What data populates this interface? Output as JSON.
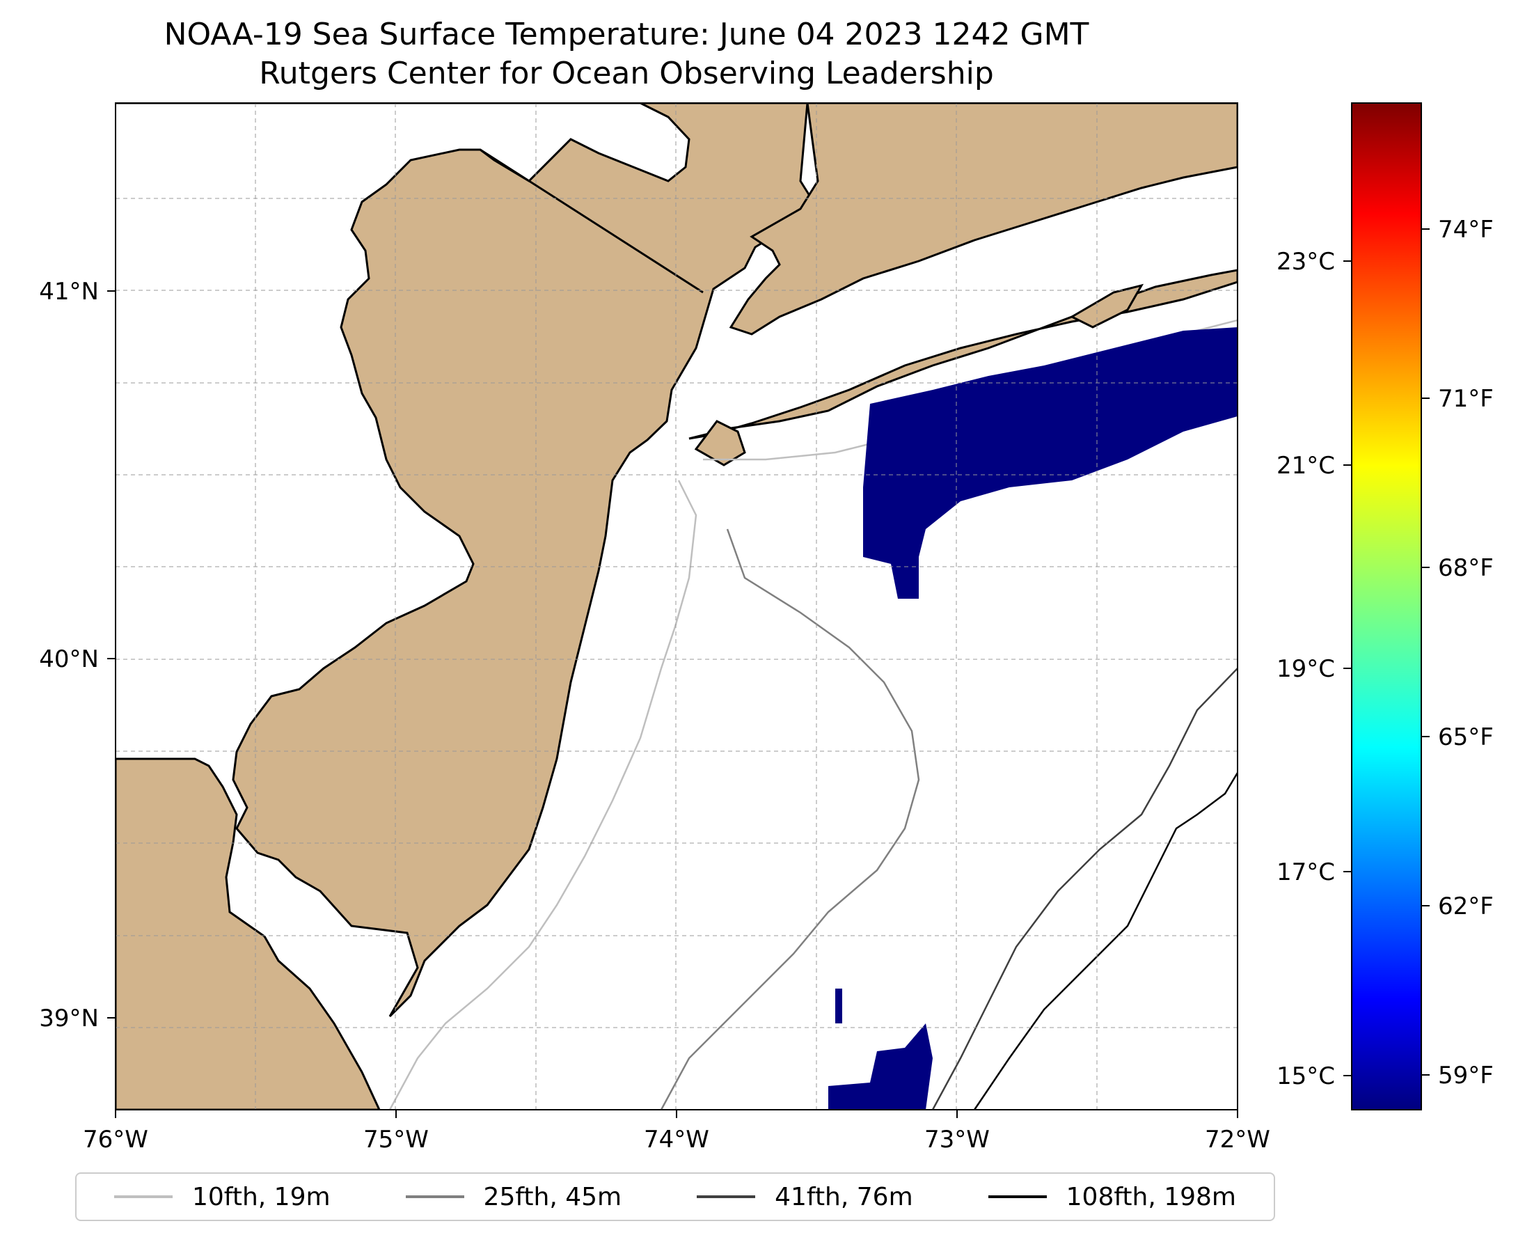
{
  "title": {
    "line1": "NOAA-19 Sea Surface Temperature: June 04 2023 1242 GMT",
    "line2": "Rutgers Center for Ocean Observing Leadership"
  },
  "map": {
    "land_color": "#d2b48c",
    "ocean_color": "#ffffff",
    "lon_ticks": [
      "76°W",
      "75°W",
      "74°W",
      "73°W",
      "72°W"
    ],
    "lat_ticks": [
      "41°N",
      "40°N",
      "39°N"
    ]
  },
  "colorbar": {
    "celsius_ticks": [
      "23°C",
      "21°C",
      "19°C",
      "17°C",
      "15°C"
    ],
    "fahrenheit_ticks": [
      "74°F",
      "71°F",
      "68°F",
      "65°F",
      "62°F",
      "59°F"
    ],
    "colormap": "jet",
    "sst_patch_color": "#000080"
  },
  "legend": {
    "items": [
      {
        "label": "10fth, 19m",
        "color": "#bfbfbf"
      },
      {
        "label": "25fth, 45m",
        "color": "#808080"
      },
      {
        "label": "41fth, 76m",
        "color": "#404040"
      },
      {
        "label": "108fth, 198m",
        "color": "#000000"
      }
    ]
  }
}
